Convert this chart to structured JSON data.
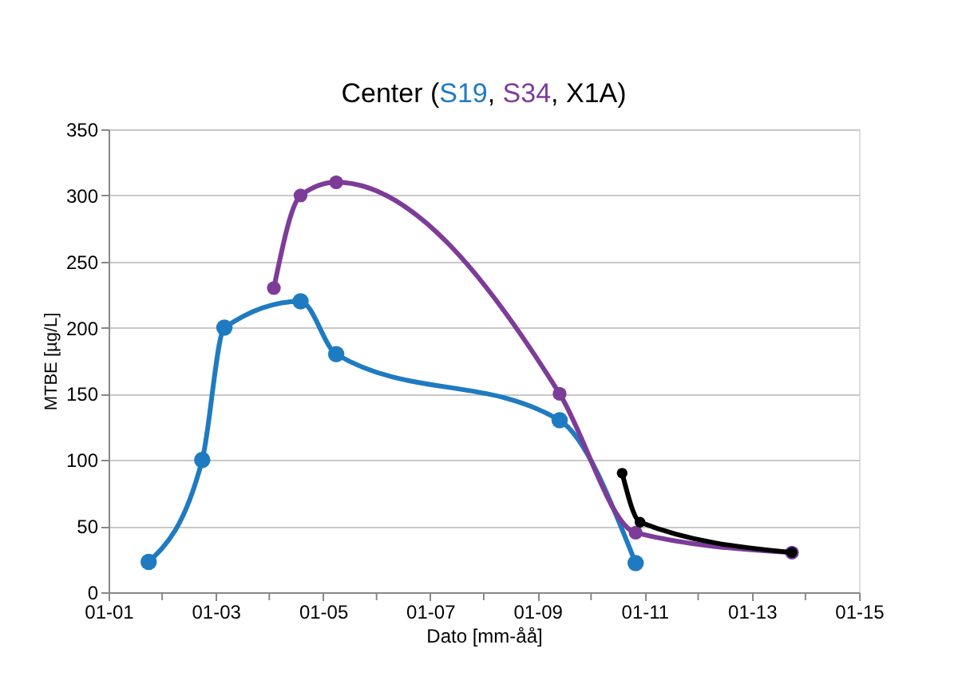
{
  "chart_data": {
    "type": "line",
    "title": "Center (S19, S34, X1A)",
    "xlabel": "Dato [mm-åå]",
    "ylabel": "MTBE [µg/L]",
    "series": [
      {
        "color": "#1f7bc1",
        "x": [
          "2001-10",
          "2002-10",
          "2003-03",
          "2004-08",
          "2005-04",
          "2009-06",
          "2010-11"
        ],
        "values": [
          23,
          100,
          200,
          220,
          180,
          130,
          22
        ]
      },
      {
        "color": "#7d3c98",
        "x": [
          "2004-02",
          "2004-08",
          "2005-04",
          "2009-06",
          "2010-11",
          "2013-10"
        ],
        "values": [
          230,
          300,
          310,
          150,
          45,
          30
        ]
      },
      {
        "color": "#000000",
        "x": [
          "2010-08",
          "2010-12",
          "2013-10"
        ],
        "values": [
          90,
          53,
          30
        ]
      }
    ],
    "xlim": [
      "2001-01",
      "2015-01"
    ],
    "xticks": [
      {
        "value": "2001-01",
        "label": "01-01"
      },
      {
        "value": "2002-01",
        "label": null
      },
      {
        "value": "2003-01",
        "label": "01-03"
      },
      {
        "value": "2004-01",
        "label": null
      },
      {
        "value": "2005-01",
        "label": "01-05"
      },
      {
        "value": "2006-01",
        "label": null
      },
      {
        "value": "2007-01",
        "label": "01-07"
      },
      {
        "value": "2008-01",
        "label": null
      },
      {
        "value": "2009-01",
        "label": "01-09"
      },
      {
        "value": "2010-01",
        "label": null
      },
      {
        "value": "2011-01",
        "label": "01-11"
      },
      {
        "value": "2012-01",
        "label": null
      },
      {
        "value": "2013-01",
        "label": "01-13"
      },
      {
        "value": "2014-01",
        "label": null
      },
      {
        "value": "2015-01",
        "label": "01-15"
      }
    ],
    "ylim": [
      0,
      350
    ],
    "yticks": [
      0,
      50,
      100,
      150,
      200,
      250,
      300,
      350
    ],
    "grid": "y",
    "marker": "circle",
    "line_style": "solid"
  }
}
